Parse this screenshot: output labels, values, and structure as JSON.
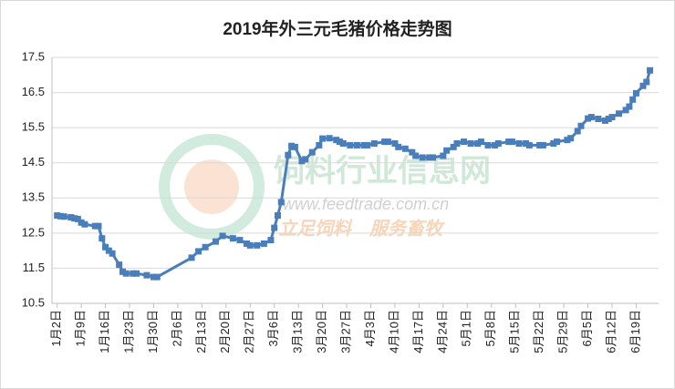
{
  "chart_data": {
    "type": "line",
    "title": "2019年外三元毛猪价格走势图",
    "x": [
      2,
      3,
      4,
      6,
      7,
      8,
      9,
      10,
      13,
      14,
      15,
      16,
      17,
      18,
      20,
      21,
      22,
      24,
      25,
      28,
      30,
      31,
      41,
      43,
      45,
      48,
      50,
      53,
      55,
      57,
      58,
      60,
      62,
      64,
      65,
      66,
      67,
      69,
      70,
      71,
      73,
      74,
      76,
      78,
      79,
      81,
      83,
      84,
      85,
      87,
      89,
      91,
      92,
      94,
      97,
      98,
      100,
      101,
      103,
      105,
      106,
      108,
      110,
      111,
      114,
      115,
      117,
      118,
      120,
      122,
      124,
      125,
      127,
      129,
      130,
      133,
      134,
      136,
      138,
      139,
      142,
      143,
      146,
      147,
      150,
      151,
      153,
      154,
      156,
      157,
      159,
      161,
      162,
      163,
      165,
      167,
      168,
      169,
      170,
      172,
      173,
      174
    ],
    "values": [
      13.0,
      12.98,
      12.97,
      12.95,
      12.92,
      12.9,
      12.8,
      12.75,
      12.7,
      12.7,
      12.35,
      12.1,
      12.0,
      11.92,
      11.6,
      11.4,
      11.35,
      11.35,
      11.35,
      11.3,
      11.25,
      11.25,
      11.8,
      11.98,
      12.1,
      12.26,
      12.42,
      12.35,
      12.3,
      12.2,
      12.15,
      12.15,
      12.2,
      12.3,
      12.65,
      13.0,
      13.38,
      14.72,
      14.98,
      14.95,
      14.55,
      14.6,
      14.8,
      15.0,
      15.19,
      15.2,
      15.15,
      15.1,
      15.05,
      15.0,
      15.0,
      15.0,
      15.0,
      15.05,
      15.1,
      15.1,
      15.05,
      14.95,
      14.9,
      14.8,
      14.7,
      14.65,
      14.65,
      14.65,
      14.7,
      14.85,
      14.95,
      15.05,
      15.1,
      15.05,
      15.05,
      15.1,
      15.0,
      15.0,
      15.05,
      15.1,
      15.1,
      15.05,
      15.05,
      15.0,
      15.0,
      15.0,
      15.05,
      15.1,
      15.15,
      15.2,
      15.4,
      15.55,
      15.76,
      15.8,
      15.75,
      15.7,
      15.75,
      15.8,
      15.9,
      16.0,
      16.1,
      16.3,
      16.48,
      16.69,
      16.8,
      17.13
    ],
    "color": "#4a7ebb",
    "xlim": [
      0.5,
      176.5
    ],
    "xticks": [
      {
        "value": 2,
        "label": "1月2日"
      },
      {
        "value": 9,
        "label": "1月9日"
      },
      {
        "value": 16,
        "label": "1月16日"
      },
      {
        "value": 23,
        "label": "1月23日"
      },
      {
        "value": 30,
        "label": "1月30日"
      },
      {
        "value": 37,
        "label": "2月6日"
      },
      {
        "value": 44,
        "label": "2月13日"
      },
      {
        "value": 51,
        "label": "2月20日"
      },
      {
        "value": 58,
        "label": "2月27日"
      },
      {
        "value": 65,
        "label": "3月6日"
      },
      {
        "value": 72,
        "label": "3月13日"
      },
      {
        "value": 79,
        "label": "3月20日"
      },
      {
        "value": 86,
        "label": "3月27日"
      },
      {
        "value": 93,
        "label": "4月3日"
      },
      {
        "value": 100,
        "label": "4月10日"
      },
      {
        "value": 107,
        "label": "4月17日"
      },
      {
        "value": 114,
        "label": "4月24日"
      },
      {
        "value": 121,
        "label": "5月1日"
      },
      {
        "value": 128,
        "label": "5月8日"
      },
      {
        "value": 135,
        "label": "5月15日"
      },
      {
        "value": 142,
        "label": "5月22日"
      },
      {
        "value": 149,
        "label": "5月29日"
      },
      {
        "value": 156,
        "label": "6月5日"
      },
      {
        "value": 163,
        "label": "6月12日"
      },
      {
        "value": 170,
        "label": "6月19日"
      }
    ],
    "ylim": [
      10.5,
      17.5
    ],
    "yticks": [
      10.5,
      11.5,
      12.5,
      13.5,
      14.5,
      15.5,
      16.5,
      17.5
    ],
    "grid": true,
    "watermark": [
      "饲料行业信息网",
      "www.feedtrade.com.cn",
      "立足饲料　服务畜牧"
    ]
  }
}
